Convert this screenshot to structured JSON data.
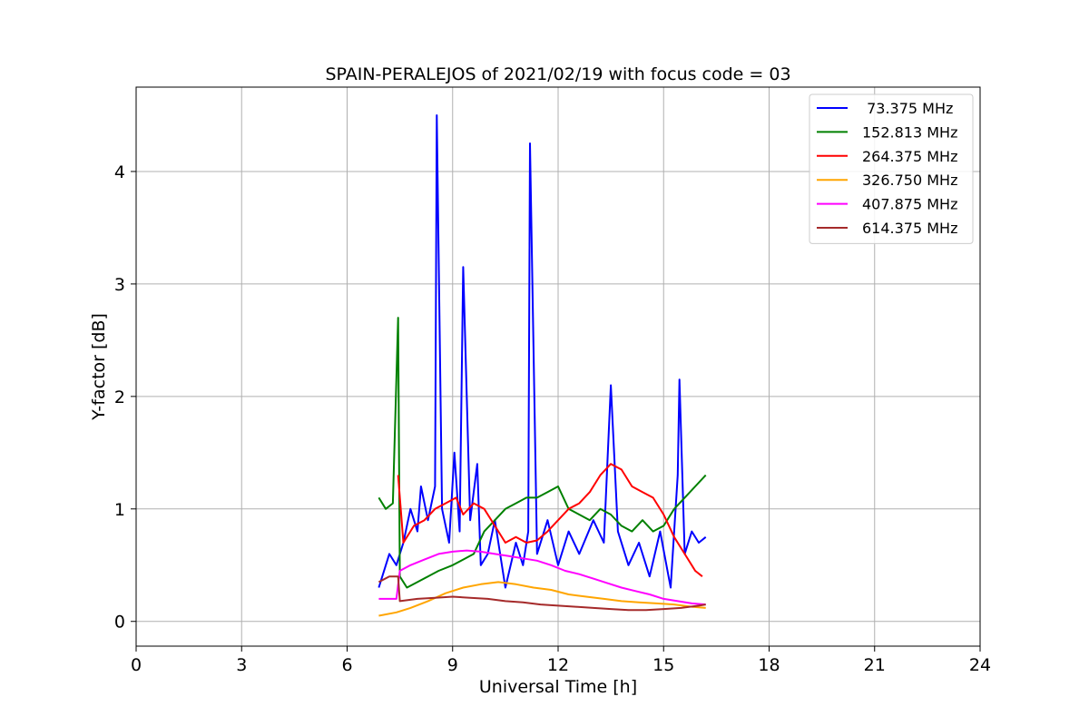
{
  "chart_data": {
    "type": "line",
    "title": "SPAIN-PERALEJOS of 2021/02/19 with focus code = 03",
    "xlabel": "Universal Time [h]",
    "ylabel": "Y-factor [dB]",
    "xlim": [
      0,
      24
    ],
    "ylim": [
      -0.22,
      4.75
    ],
    "xticks": [
      0,
      3,
      6,
      9,
      12,
      15,
      18,
      21,
      24
    ],
    "yticks": [
      0,
      1,
      2,
      3,
      4
    ],
    "grid": true,
    "legend_position": "top-right",
    "series": [
      {
        "name": " 73.375 MHz",
        "color": "#0000ff",
        "x": [
          6.9,
          7.2,
          7.4,
          7.6,
          7.8,
          8.0,
          8.1,
          8.3,
          8.5,
          8.55,
          8.7,
          8.9,
          9.05,
          9.2,
          9.3,
          9.5,
          9.7,
          9.8,
          10.0,
          10.2,
          10.5,
          10.8,
          11.0,
          11.15,
          11.2,
          11.4,
          11.7,
          12.0,
          12.3,
          12.6,
          13.0,
          13.3,
          13.5,
          13.7,
          14.0,
          14.3,
          14.6,
          14.9,
          15.2,
          15.4,
          15.45,
          15.6,
          15.8,
          16.0,
          16.2
        ],
        "values": [
          0.3,
          0.6,
          0.5,
          0.7,
          1.0,
          0.8,
          1.2,
          0.9,
          1.2,
          4.5,
          1.0,
          0.7,
          1.5,
          0.8,
          3.15,
          0.9,
          1.4,
          0.5,
          0.6,
          0.9,
          0.3,
          0.7,
          0.5,
          0.8,
          4.25,
          0.6,
          0.9,
          0.5,
          0.8,
          0.6,
          0.9,
          0.7,
          2.1,
          0.8,
          0.5,
          0.7,
          0.4,
          0.8,
          0.3,
          1.3,
          2.15,
          0.6,
          0.8,
          0.7,
          0.75
        ]
      },
      {
        "name": "152.813 MHz",
        "color": "#008000",
        "x": [
          6.9,
          7.1,
          7.3,
          7.45,
          7.5,
          7.7,
          8.0,
          8.3,
          8.6,
          9.0,
          9.3,
          9.6,
          9.9,
          10.2,
          10.5,
          10.8,
          11.1,
          11.4,
          11.7,
          12.0,
          12.3,
          12.6,
          12.9,
          13.2,
          13.5,
          13.8,
          14.1,
          14.4,
          14.7,
          15.0,
          15.3,
          15.6,
          15.9,
          16.2
        ],
        "values": [
          1.1,
          1.0,
          1.05,
          2.7,
          0.4,
          0.3,
          0.35,
          0.4,
          0.45,
          0.5,
          0.55,
          0.6,
          0.8,
          0.9,
          1.0,
          1.05,
          1.1,
          1.1,
          1.15,
          1.2,
          1.0,
          0.95,
          0.9,
          1.0,
          0.95,
          0.85,
          0.8,
          0.9,
          0.8,
          0.85,
          1.0,
          1.1,
          1.2,
          1.3
        ]
      },
      {
        "name": "264.375 MHz",
        "color": "#ff0000",
        "x": [
          7.45,
          7.6,
          7.9,
          8.2,
          8.5,
          8.8,
          9.1,
          9.3,
          9.6,
          9.9,
          10.2,
          10.5,
          10.8,
          11.1,
          11.4,
          11.7,
          12.0,
          12.3,
          12.6,
          12.9,
          13.2,
          13.5,
          13.8,
          14.1,
          14.4,
          14.7,
          15.0,
          15.3,
          15.6,
          15.9,
          16.1
        ],
        "values": [
          1.3,
          0.7,
          0.85,
          0.9,
          1.0,
          1.05,
          1.1,
          0.95,
          1.05,
          1.0,
          0.85,
          0.7,
          0.75,
          0.7,
          0.72,
          0.8,
          0.9,
          1.0,
          1.05,
          1.15,
          1.3,
          1.4,
          1.35,
          1.2,
          1.15,
          1.1,
          0.95,
          0.75,
          0.6,
          0.45,
          0.4
        ]
      },
      {
        "name": "326.750 MHz",
        "color": "#ffa500",
        "x": [
          6.9,
          7.4,
          7.8,
          8.3,
          8.8,
          9.3,
          9.8,
          10.3,
          10.8,
          11.3,
          11.8,
          12.3,
          12.8,
          13.3,
          13.8,
          14.3,
          14.8,
          15.3,
          15.8,
          16.2
        ],
        "values": [
          0.05,
          0.08,
          0.12,
          0.18,
          0.25,
          0.3,
          0.33,
          0.35,
          0.33,
          0.3,
          0.28,
          0.24,
          0.22,
          0.2,
          0.18,
          0.17,
          0.16,
          0.15,
          0.13,
          0.12
        ]
      },
      {
        "name": "407.875 MHz",
        "color": "#ff00ff",
        "x": [
          6.9,
          7.4,
          7.5,
          7.8,
          8.2,
          8.6,
          9.0,
          9.4,
          9.8,
          10.2,
          10.6,
          11.0,
          11.4,
          11.8,
          12.2,
          12.6,
          13.0,
          13.4,
          13.8,
          14.2,
          14.6,
          15.0,
          15.4,
          15.8,
          16.2
        ],
        "values": [
          0.2,
          0.2,
          0.45,
          0.5,
          0.55,
          0.6,
          0.62,
          0.63,
          0.62,
          0.6,
          0.58,
          0.56,
          0.54,
          0.5,
          0.45,
          0.42,
          0.38,
          0.34,
          0.3,
          0.27,
          0.24,
          0.2,
          0.18,
          0.16,
          0.15
        ]
      },
      {
        "name": "614.375 MHz",
        "color": "#a52a2a",
        "x": [
          6.9,
          7.2,
          7.45,
          7.5,
          8.0,
          8.5,
          9.0,
          9.5,
          10.0,
          10.5,
          11.0,
          11.5,
          12.0,
          12.5,
          13.0,
          13.5,
          14.0,
          14.5,
          15.0,
          15.5,
          16.0,
          16.2
        ],
        "values": [
          0.35,
          0.4,
          0.4,
          0.18,
          0.2,
          0.21,
          0.22,
          0.21,
          0.2,
          0.18,
          0.17,
          0.15,
          0.14,
          0.13,
          0.12,
          0.11,
          0.1,
          0.1,
          0.11,
          0.12,
          0.14,
          0.15
        ]
      }
    ]
  }
}
